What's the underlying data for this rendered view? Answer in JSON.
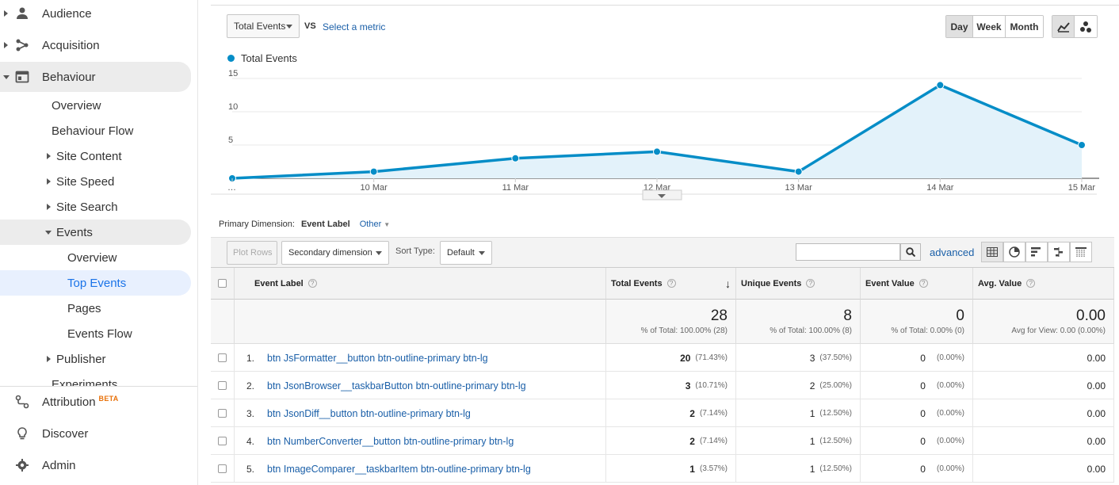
{
  "sidebar": {
    "top_items": [
      {
        "label": "Audience",
        "icon": "person-icon"
      },
      {
        "label": "Acquisition",
        "icon": "acquisition-icon"
      },
      {
        "label": "Behaviour",
        "icon": "behaviour-icon"
      }
    ],
    "behaviour_children": {
      "overview": "Overview",
      "behaviour_flow": "Behaviour Flow",
      "site_content": "Site Content",
      "site_speed": "Site Speed",
      "site_search": "Site Search",
      "events": "Events",
      "events_overview": "Overview",
      "top_events": "Top Events",
      "pages": "Pages",
      "events_flow": "Events Flow",
      "publisher": "Publisher",
      "experiments": "Experiments"
    },
    "bottom_items": {
      "attribution": "Attribution",
      "attribution_badge": "BETA",
      "discover": "Discover",
      "admin": "Admin"
    }
  },
  "controls": {
    "metric": "Total Events",
    "vs": "VS",
    "select_metric": "Select a metric",
    "periods": [
      "Day",
      "Week",
      "Month"
    ],
    "active_period": "Day"
  },
  "chart_data": {
    "type": "area",
    "legend": "Total Events",
    "x": [
      "…",
      "10 Mar",
      "11 Mar",
      "12 Mar",
      "13 Mar",
      "14 Mar",
      "15 Mar"
    ],
    "series": [
      {
        "name": "Total Events",
        "values": [
          0,
          1,
          3,
          4,
          1,
          14,
          5
        ]
      }
    ],
    "yticks": [
      5,
      10,
      15
    ],
    "ylim": [
      0,
      15
    ],
    "colors": {
      "line": "#058dc7",
      "fill": "#e3f2fa"
    }
  },
  "dimension": {
    "label": "Primary Dimension:",
    "active": "Event Label",
    "other": "Other"
  },
  "toolbar": {
    "plot_rows": "Plot Rows",
    "secondary_dimension": "Secondary dimension",
    "sort_type_label": "Sort Type:",
    "sort_type": "Default",
    "advanced": "advanced"
  },
  "table": {
    "headers": {
      "event_label": "Event Label",
      "total_events": "Total Events",
      "unique_events": "Unique Events",
      "event_value": "Event Value",
      "avg_value": "Avg. Value"
    },
    "totals": {
      "total_events": "28",
      "total_events_sub": "% of Total: 100.00% (28)",
      "unique_events": "8",
      "unique_events_sub": "% of Total: 100.00% (8)",
      "event_value": "0",
      "event_value_sub": "% of Total: 0.00% (0)",
      "avg_value": "0.00",
      "avg_value_sub": "Avg for View: 0.00 (0.00%)"
    },
    "rows": [
      {
        "idx": "1.",
        "label": "btn JsFormatter__button btn-outline-primary btn-lg",
        "total": "20",
        "total_pct": "(71.43%)",
        "unique": "3",
        "unique_pct": "(37.50%)",
        "value": "0",
        "value_pct": "(0.00%)",
        "avg": "0.00"
      },
      {
        "idx": "2.",
        "label": "btn JsonBrowser__taskbarButton btn-outline-primary btn-lg",
        "total": "3",
        "total_pct": "(10.71%)",
        "unique": "2",
        "unique_pct": "(25.00%)",
        "value": "0",
        "value_pct": "(0.00%)",
        "avg": "0.00"
      },
      {
        "idx": "3.",
        "label": "btn JsonDiff__button btn-outline-primary btn-lg",
        "total": "2",
        "total_pct": "(7.14%)",
        "unique": "1",
        "unique_pct": "(12.50%)",
        "value": "0",
        "value_pct": "(0.00%)",
        "avg": "0.00"
      },
      {
        "idx": "4.",
        "label": "btn NumberConverter__button btn-outline-primary btn-lg",
        "total": "2",
        "total_pct": "(7.14%)",
        "unique": "1",
        "unique_pct": "(12.50%)",
        "value": "0",
        "value_pct": "(0.00%)",
        "avg": "0.00"
      },
      {
        "idx": "5.",
        "label": "btn ImageComparer__taskbarItem btn-outline-primary btn-lg",
        "total": "1",
        "total_pct": "(3.57%)",
        "unique": "1",
        "unique_pct": "(12.50%)",
        "value": "0",
        "value_pct": "(0.00%)",
        "avg": "0.00"
      }
    ]
  }
}
